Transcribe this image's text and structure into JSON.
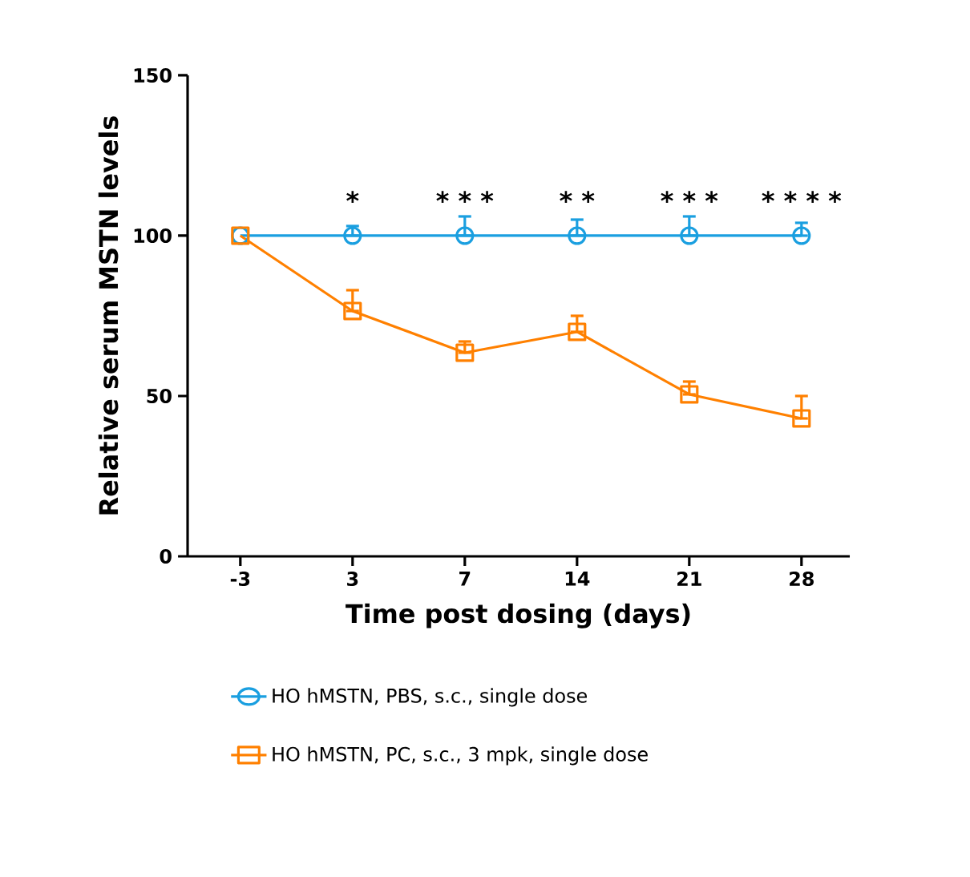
{
  "chart_data": {
    "type": "line",
    "xlabel": "Time post dosing (days)",
    "ylabel": "Relative serum MSTN levels",
    "categories": [
      "-3",
      "3",
      "7",
      "14",
      "21",
      "28"
    ],
    "ylim": [
      0,
      150
    ],
    "yticks": [
      0,
      50,
      100,
      150
    ],
    "legend": "bottom",
    "series": [
      {
        "name": "HO hMSTN, PBS, s.c., single dose",
        "color": "#1a9fe0",
        "marker": "circle",
        "values": [
          100,
          100,
          100,
          100,
          100,
          100
        ],
        "errors": [
          null,
          [
            100,
            103
          ],
          [
            100,
            106
          ],
          [
            100,
            105
          ],
          [
            100,
            106
          ],
          [
            100,
            104
          ]
        ]
      },
      {
        "name": "HO hMSTN, PC, s.c., 3 mpk, single dose",
        "color": "#ff8000",
        "marker": "square",
        "values": [
          100,
          76.5,
          63.5,
          70,
          50.5,
          43
        ],
        "errors": [
          null,
          [
            76.5,
            83
          ],
          [
            63.5,
            67
          ],
          [
            70,
            75
          ],
          [
            50.5,
            54.5
          ],
          [
            43,
            50
          ]
        ]
      }
    ],
    "annotations": [
      "*",
      "* * *",
      "* *",
      "* * *",
      "* * * *"
    ]
  }
}
